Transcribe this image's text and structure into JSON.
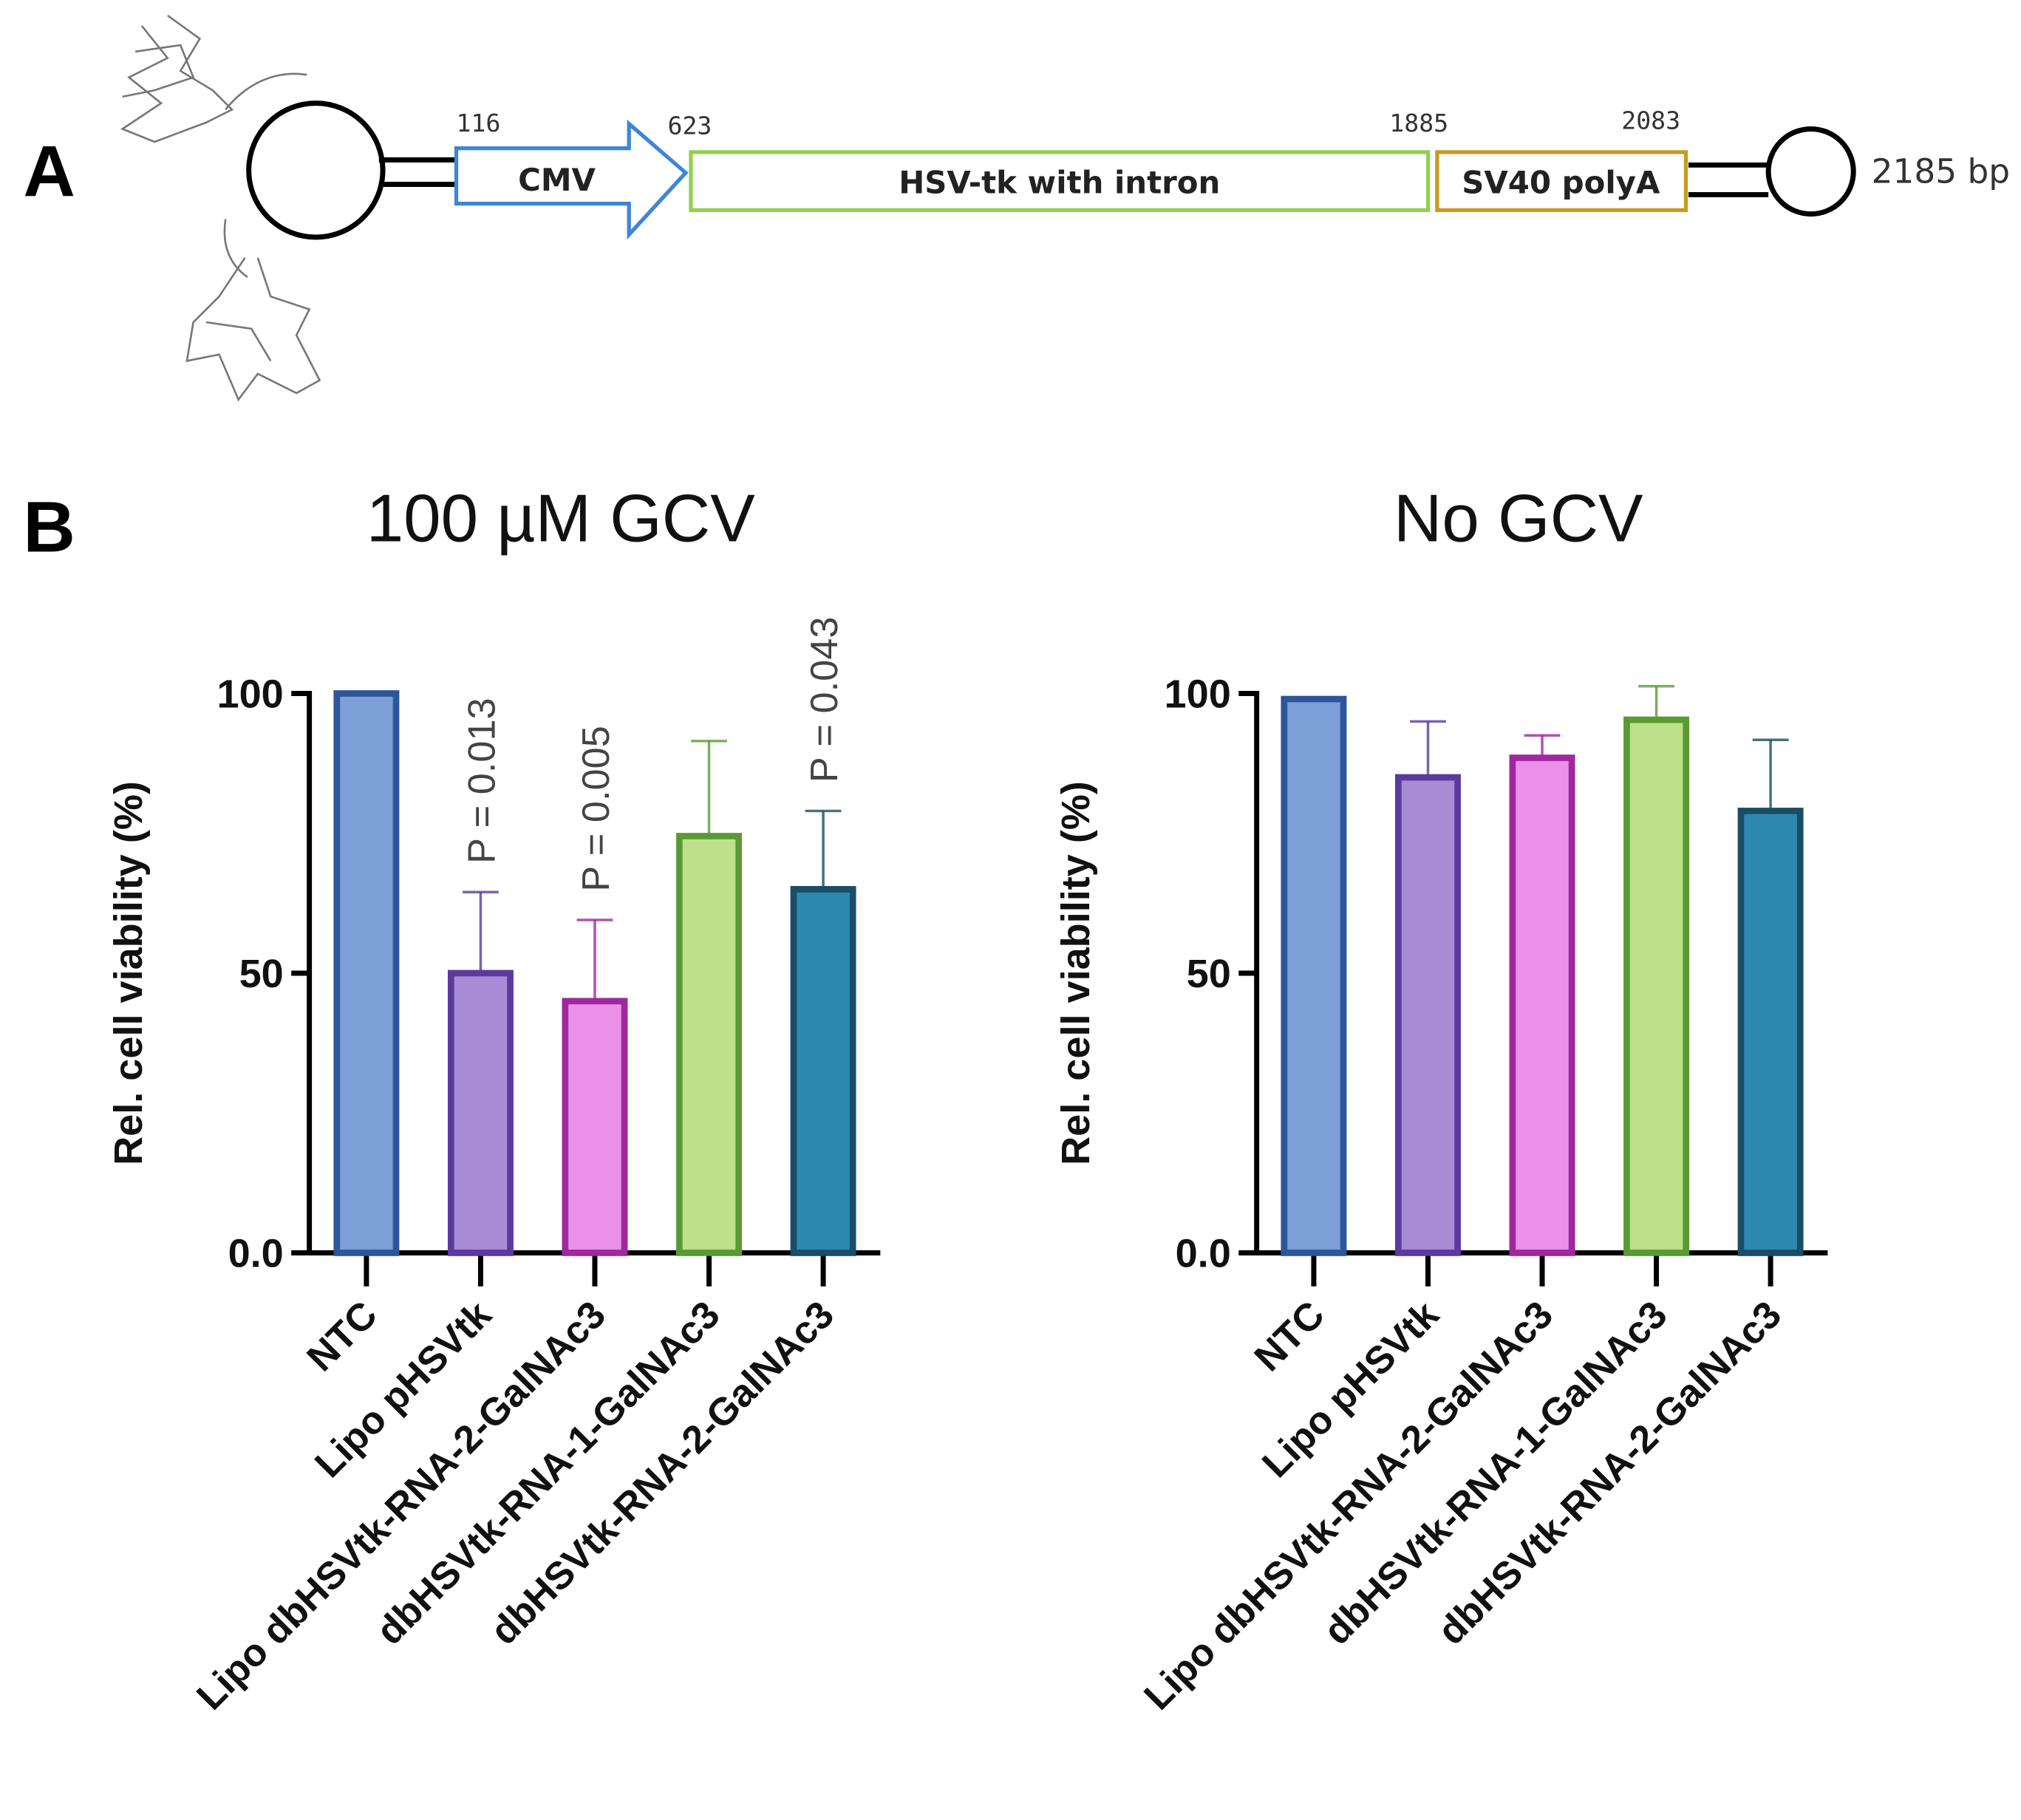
{
  "panel_labels": [
    "A",
    "B"
  ],
  "diagram": {
    "positions": [
      "116",
      "623",
      "1885",
      "2083"
    ],
    "elements": [
      "CMV",
      "HSV-tk with intron",
      "SV40 polyA"
    ],
    "length": "2185 bp"
  },
  "chart_data": [
    {
      "type": "bar",
      "title": "100 µM GCV",
      "y_label": "Rel. cell viability (%)",
      "categories": [
        "NTC",
        "Lipo pHSVtk",
        "Lipo dbHSVtk-RNA-2-GalNAc3",
        "dbHSVtk-RNA-1-GalNAc3",
        "dbHSVtk-RNA-2-GalNAc3"
      ],
      "values": [
        100,
        50,
        45,
        74.5,
        65
      ],
      "errors": [
        null,
        14.5,
        14.5,
        17,
        14
      ],
      "annotations": [
        null,
        "P = 0.013",
        "P = 0.005",
        null,
        "P = 0.043"
      ],
      "colors": [
        "#7b9fd6",
        "#a78bd5",
        "#ea90e8",
        "#bde08a",
        "#2e89b0"
      ],
      "edge_colors": [
        "#2c559a",
        "#5b3a9e",
        "#a0289e",
        "#5a9a34",
        "#1a4d66"
      ],
      "ylim": [
        0,
        100
      ],
      "yticks": [
        {
          "value": 0,
          "label": "0.0"
        },
        50,
        100
      ]
    },
    {
      "type": "bar",
      "title": "No GCV",
      "y_label": "Rel. cell viability (%)",
      "categories": [
        "NTC",
        "Lipo pHSVtk",
        "Lipo dbHSVtk-RNA-2-GalNAc3",
        "dbHSVtk-RNA-1-GalNAc3",
        "dbHSVtk-RNA-2-GalNAc3"
      ],
      "values": [
        99,
        85,
        88.5,
        95.3,
        79
      ],
      "errors": [
        null,
        10,
        4,
        6,
        12.7
      ],
      "colors": [
        "#7b9fd6",
        "#a78bd5",
        "#ea90e8",
        "#bde08a",
        "#2e89b0"
      ],
      "edge_colors": [
        "#2c559a",
        "#5b3a9e",
        "#a0289e",
        "#5a9a34",
        "#1a4d66"
      ],
      "ylim": [
        0,
        100
      ],
      "yticks": [
        {
          "value": 0,
          "label": "0.0"
        },
        50,
        100
      ]
    }
  ]
}
